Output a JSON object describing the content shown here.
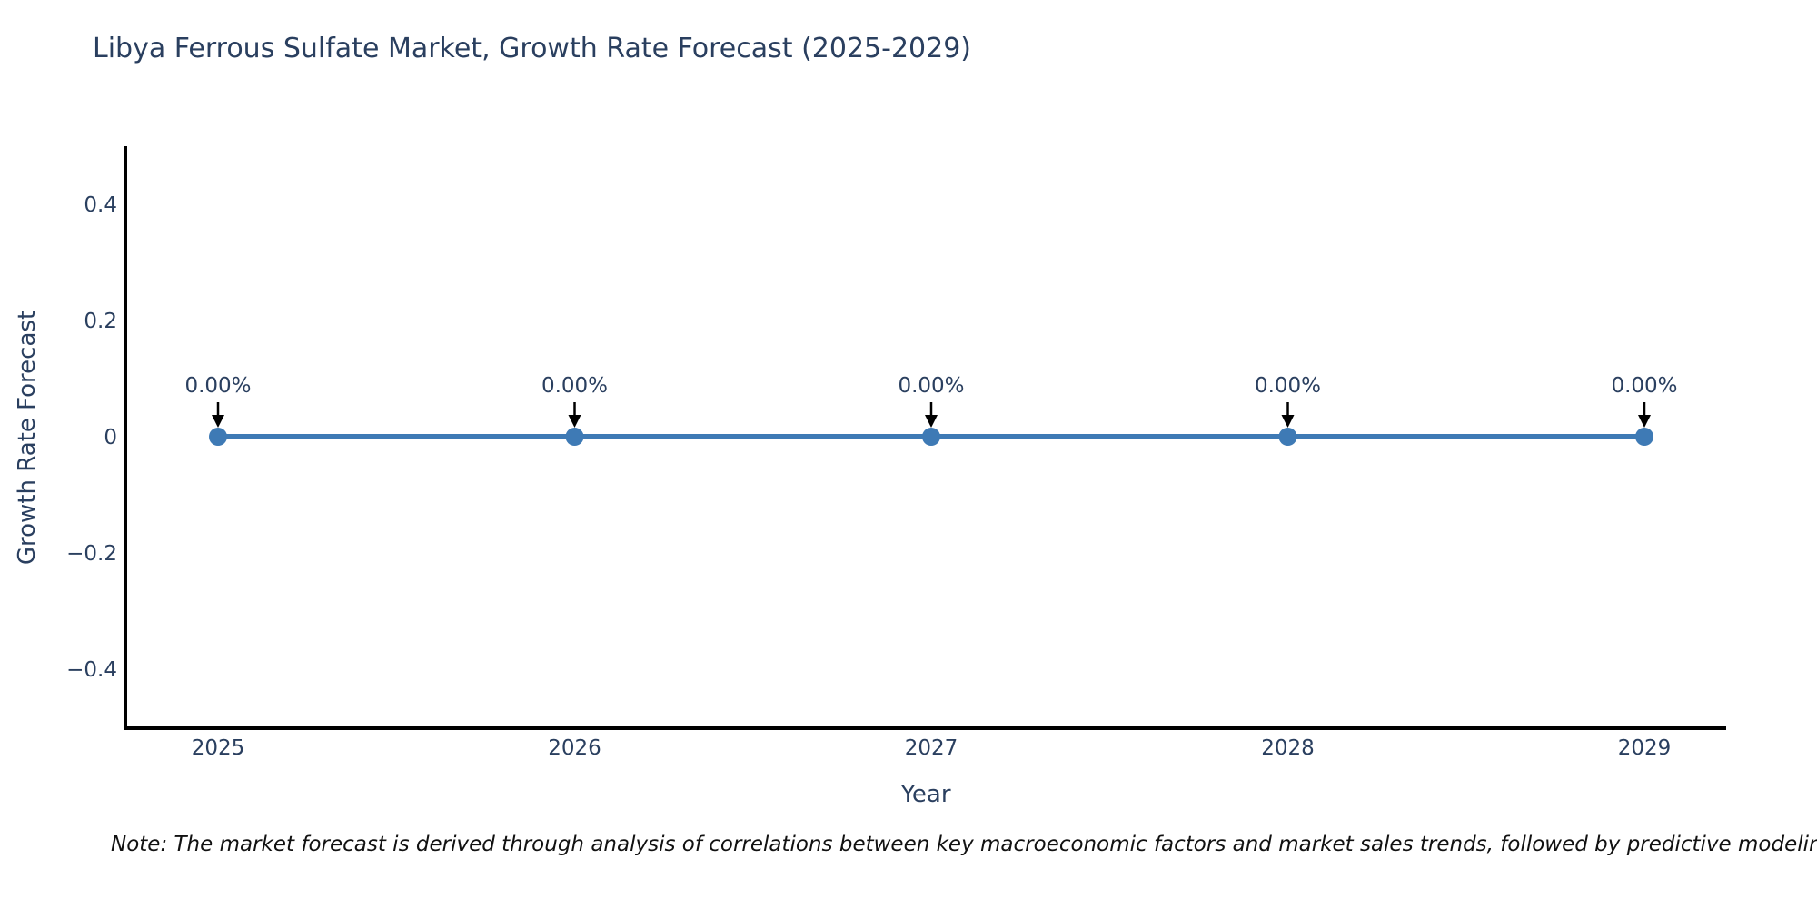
{
  "note": {
    "text": "Note: The market forecast is derived through analysis of correlations between key macroeconomic factors and market sales trends, followed by predictive modeling to project future sa"
  },
  "chart_data": {
    "type": "line",
    "title": "Libya Ferrous Sulfate Market, Growth Rate Forecast (2025-2029)",
    "xlabel": "Year",
    "ylabel": "Growth Rate Forecast",
    "x": [
      2025,
      2026,
      2027,
      2028,
      2029
    ],
    "x_tick_labels": [
      "2025",
      "2026",
      "2027",
      "2028",
      "2029"
    ],
    "series": [
      {
        "name": "Growth Rate Forecast",
        "values": [
          0,
          0,
          0,
          0,
          0
        ],
        "point_labels": [
          "0.00%",
          "0.00%",
          "0.00%",
          "0.00%",
          "0.00%"
        ]
      }
    ],
    "y_ticks": {
      "values": [
        0.4,
        0.2,
        0,
        -0.2,
        -0.4
      ],
      "labels": [
        "0.4",
        "0.2",
        "0",
        "−0.2",
        "−0.4"
      ]
    },
    "ylim": [
      -0.5,
      0.5
    ],
    "grid": false,
    "legend": "none",
    "annotation_style": "label-above-with-down-arrow",
    "colors": {
      "line": "#3e7ab5",
      "marker": "#3e7ab5",
      "axis": "#000000",
      "text": "#2a3f5f",
      "annotation_arrow": "#000000",
      "background": "#ffffff"
    }
  }
}
